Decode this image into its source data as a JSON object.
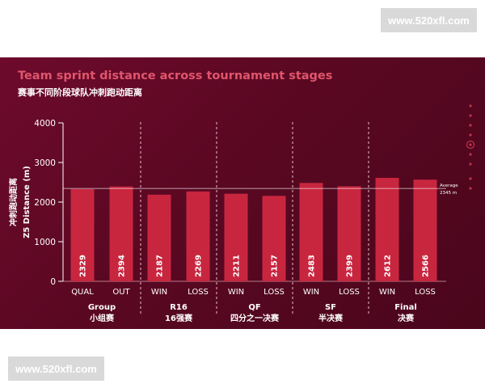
{
  "watermarks": {
    "top": "www.520xfl.com",
    "bottom": "www.520xfl.com"
  },
  "colors": {
    "panel": "#5a0822",
    "bar": "#c8263f",
    "bar_label": "#ffffff",
    "text": "#ffffff",
    "title": "#e0566c",
    "average_line": "#ffffff",
    "dots": "#c2324a"
  },
  "chart_data": {
    "type": "bar",
    "title": "Team sprint distance across tournament stages",
    "subtitle": "赛事不同阶段球队冲刺跑动距离",
    "ylabel_cn": "冲刺跑动距离",
    "ylabel": "Z5 Distance (m)",
    "ylim": [
      0,
      4000
    ],
    "yticks": [
      0,
      1000,
      2000,
      3000,
      4000
    ],
    "grid": false,
    "categories": [
      "QUAL",
      "OUT",
      "WIN",
      "LOSS",
      "WIN",
      "LOSS",
      "WIN",
      "LOSS",
      "WIN",
      "LOSS"
    ],
    "values": [
      2329,
      2394,
      2187,
      2269,
      2211,
      2157,
      2483,
      2399,
      2612,
      2566
    ],
    "groups": [
      {
        "en": "Group",
        "cn": "小组赛"
      },
      {
        "en": "R16",
        "cn": "16强赛"
      },
      {
        "en": "QF",
        "cn": "四分之一决赛"
      },
      {
        "en": "SF",
        "cn": "半决赛"
      },
      {
        "en": "Final",
        "cn": "决赛"
      }
    ],
    "average": {
      "value": 2345,
      "label": "Average",
      "value_label": "2345 m"
    }
  }
}
